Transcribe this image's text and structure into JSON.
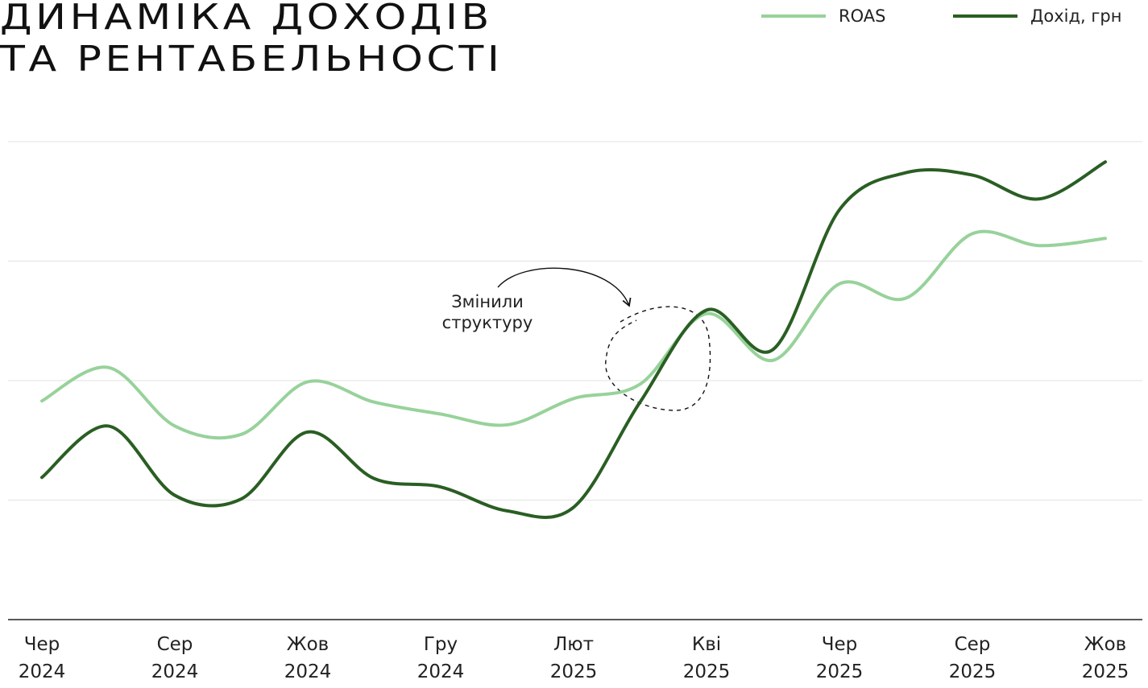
{
  "chart_data": {
    "type": "line",
    "title": "ДИНАМІКА ДОХОДІВ\nТА РЕНТАБЕЛЬНОСТІ",
    "annotation": "Змінили\nструктуру",
    "categories": [
      "Чер\n2024",
      null,
      "Сер\n2024",
      null,
      "Жов\n2024",
      null,
      "Гру\n2024",
      null,
      "Лют\n2025",
      null,
      "Кві\n2025",
      null,
      "Чер\n2025",
      null,
      "Сер\n2025",
      null,
      "Жов\n2025"
    ],
    "series": [
      {
        "name": "ROAS",
        "color": "#97d29a",
        "values": [
          1.83,
          2.11,
          1.62,
          1.55,
          1.99,
          1.82,
          1.72,
          1.63,
          1.85,
          1.97,
          2.56,
          2.17,
          2.81,
          2.69,
          3.23,
          3.13,
          3.19
        ]
      },
      {
        "name": "Дохід, грн",
        "color": "#2a5e23",
        "values": [
          1.19,
          1.62,
          1.04,
          1.01,
          1.57,
          1.18,
          1.11,
          0.91,
          0.94,
          1.82,
          2.59,
          2.26,
          3.43,
          3.74,
          3.72,
          3.52,
          3.83
        ]
      }
    ],
    "ylim": [
      0,
      4
    ],
    "yticks": [
      0,
      1,
      2,
      3,
      4
    ],
    "grid": true,
    "legend": "top-right"
  }
}
